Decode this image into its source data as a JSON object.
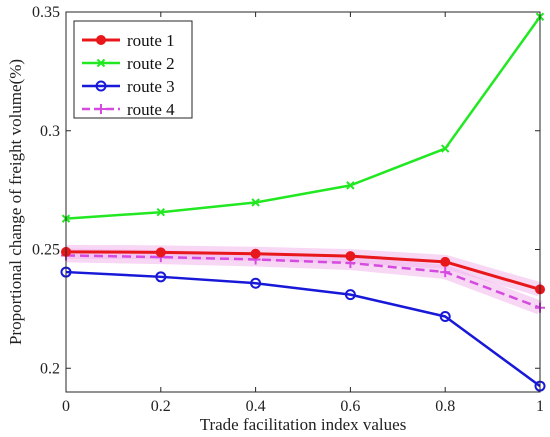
{
  "chart_data": {
    "type": "line",
    "title": "",
    "xlabel": "Trade facilitation index values",
    "ylabel": "Proportional change of freight volume(%)",
    "x": [
      0,
      0.2,
      0.4,
      0.6,
      0.8,
      1
    ],
    "xlim": [
      0,
      1
    ],
    "ylim": [
      0.19,
      0.35
    ],
    "xticks": [
      "0",
      "0.2",
      "0.4",
      "0.6",
      "0.8",
      "1"
    ],
    "yticks": [
      "0.2",
      "0.25",
      "0.3",
      "0.35"
    ],
    "grid": false,
    "legend_position": "top-left",
    "series": [
      {
        "name": "route 1",
        "values": [
          0.249,
          0.2488,
          0.2482,
          0.2472,
          0.2448,
          0.2332
        ],
        "color": "#e8171b",
        "marker": "dot",
        "dash": "solid"
      },
      {
        "name": "route 2",
        "values": [
          0.263,
          0.2657,
          0.2698,
          0.277,
          0.2925,
          0.348
        ],
        "color": "#22e822",
        "marker": "x",
        "dash": "solid"
      },
      {
        "name": "route 3",
        "values": [
          0.2405,
          0.2385,
          0.2358,
          0.231,
          0.2218,
          0.1925
        ],
        "color": "#1818d8",
        "marker": "circle",
        "dash": "solid"
      },
      {
        "name": "route 4",
        "values": [
          0.2475,
          0.2468,
          0.2458,
          0.2443,
          0.2405,
          0.2255
        ],
        "color": "#d54be0",
        "marker": "plus",
        "dash": "dashed"
      }
    ]
  }
}
